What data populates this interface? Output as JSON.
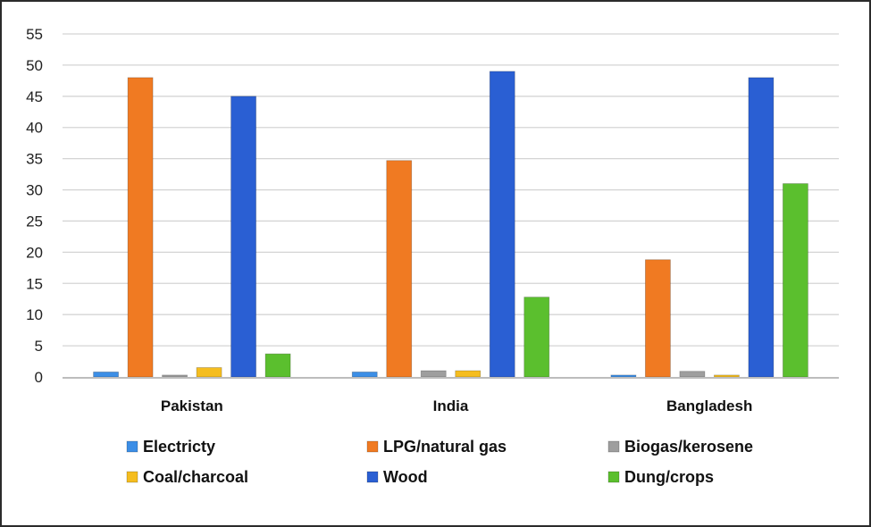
{
  "chart_data": {
    "type": "bar",
    "categories": [
      "Pakistan",
      "India",
      "Bangladesh"
    ],
    "series": [
      {
        "name": "Electricty",
        "color": "#3c8ee6",
        "values": [
          0.8,
          0.8,
          0.3
        ]
      },
      {
        "name": "LPG/natural gas",
        "color": "#f07a22",
        "values": [
          48,
          34.7,
          18.8
        ]
      },
      {
        "name": "Biogas/kerosene",
        "color": "#9e9e9e",
        "values": [
          0.3,
          1.0,
          0.9
        ]
      },
      {
        "name": "Coal/charcoal",
        "color": "#f5bd1f",
        "values": [
          1.5,
          1.0,
          0.3
        ]
      },
      {
        "name": "Wood",
        "color": "#2a5fd3",
        "values": [
          45,
          49,
          48
        ]
      },
      {
        "name": "Dung/crops",
        "color": "#5bbf2e",
        "values": [
          3.7,
          12.8,
          31
        ]
      }
    ],
    "ylim": [
      0,
      55
    ],
    "yticks": [
      0,
      5,
      10,
      15,
      20,
      25,
      30,
      35,
      40,
      45,
      50,
      55
    ],
    "grid": true,
    "legend_position": "bottom"
  }
}
